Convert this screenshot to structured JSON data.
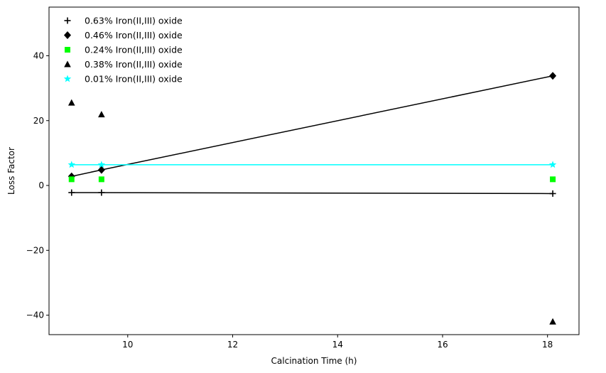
{
  "chart_data": {
    "type": "scatter",
    "title": "",
    "xlabel": "Calcination Time (h)",
    "ylabel": "Loss Factor",
    "xlim": [
      8.5,
      18.6
    ],
    "ylim": [
      -46,
      55
    ],
    "xticks": [
      10,
      12,
      14,
      16,
      18
    ],
    "yticks": [
      -40,
      -20,
      0,
      20,
      40
    ],
    "grid": false,
    "legend_position": "top-left",
    "series": [
      {
        "name": "0.63% Iron(II,III) oxide",
        "marker": "plus",
        "color": "#000000",
        "x": [
          8.93,
          9.5,
          18.1
        ],
        "y": [
          -2.2,
          -2.2,
          -2.5
        ],
        "fit_line": {
          "x": [
            8.93,
            18.1
          ],
          "y": [
            -2.2,
            -2.5
          ],
          "color": "#000000"
        }
      },
      {
        "name": "0.46% Iron(II,III) oxide",
        "marker": "diamond",
        "color": "#000000",
        "x": [
          8.93,
          9.5,
          18.1
        ],
        "y": [
          2.8,
          4.8,
          33.8
        ],
        "fit_line": {
          "x": [
            8.93,
            9.5,
            18.1
          ],
          "y": [
            2.8,
            4.8,
            33.8
          ],
          "color": "#000000"
        }
      },
      {
        "name": "0.24% Iron(II,III) oxide",
        "marker": "square",
        "color": "#00ff00",
        "x": [
          8.93,
          9.5,
          18.1
        ],
        "y": [
          1.9,
          1.9,
          1.9
        ]
      },
      {
        "name": "0.38% Iron(II,III) oxide",
        "marker": "triangle",
        "color": "#000000",
        "x": [
          8.93,
          9.5,
          18.1
        ],
        "y": [
          25.5,
          21.9,
          -42.0
        ]
      },
      {
        "name": "0.01% Iron(II,III) oxide",
        "marker": "star",
        "color": "#00ffff",
        "x": [
          8.93,
          9.5,
          18.1
        ],
        "y": [
          6.4,
          6.4,
          6.4
        ],
        "fit_line": {
          "x": [
            8.93,
            18.1
          ],
          "y": [
            6.4,
            6.4
          ],
          "color": "#00ffff"
        }
      }
    ]
  }
}
